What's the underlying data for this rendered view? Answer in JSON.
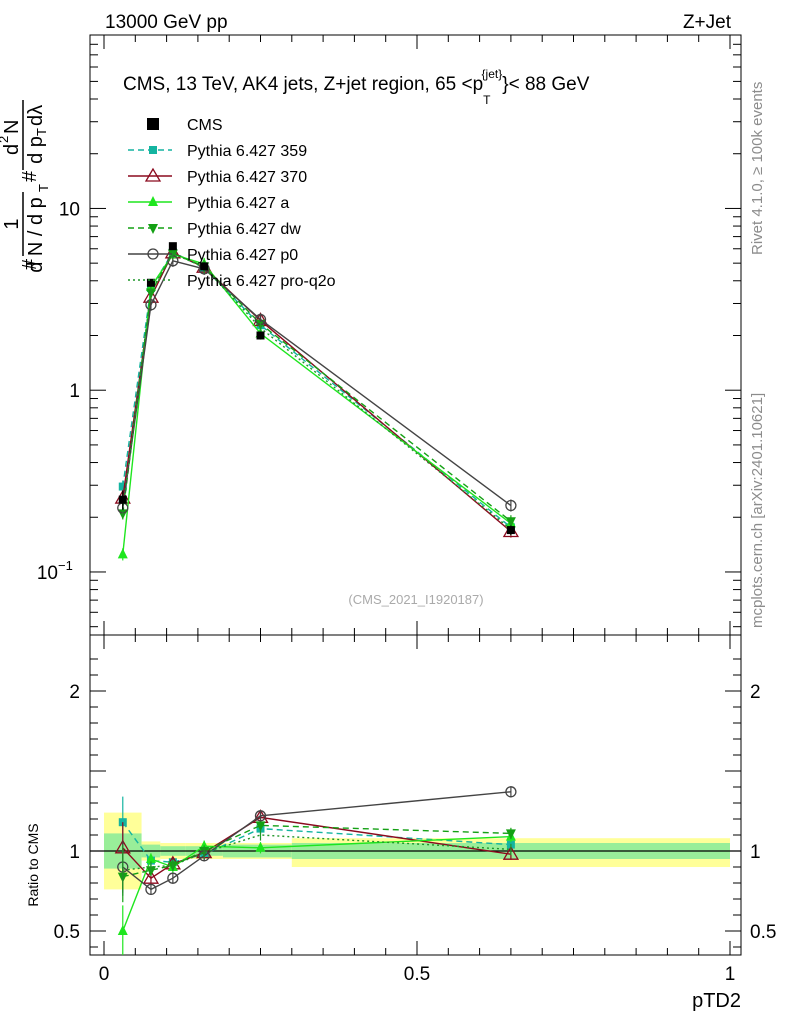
{
  "header": {
    "left": "13000 GeV pp",
    "right": "Z+Jet"
  },
  "side_text": {
    "rivet": "Rivet 4.1.0, ≥ 100k events",
    "mcplots": "mcplots.cern.ch [arXiv:2401.10621]"
  },
  "watermark": "(CMS_2021_I1920187)",
  "chart_data": {
    "type": "line",
    "title": "CMS, 13 TeV, AK4 jets, Z+jet region, 65 <p_T^{jet}< 88 GeV",
    "title_parts": {
      "main": "CMS, 13 TeV, AK4 jets, Z+jet region, 65 <p",
      "sup": "{jet}",
      "sub": "T",
      "end": "}< 88 GeV"
    },
    "xlabel": "pTD2",
    "ylabel": "1/(dN/dp_T) d²N/(dp_T dλ)",
    "ratio_ylabel": "Ratio to CMS",
    "xlim": [
      0,
      1
    ],
    "ylim": [
      0.045,
      90
    ],
    "yscale": "log",
    "ratio_ylim": [
      0.35,
      2.35
    ],
    "x": [
      0.03,
      0.075,
      0.11,
      0.16,
      0.25,
      0.65
    ],
    "data_name": "CMS",
    "data_values": [
      0.25,
      3.9,
      6.2,
      4.8,
      2.0,
      0.17
    ],
    "data_errors": [
      0.03,
      0.15,
      0.2,
      0.15,
      0.08,
      0.01
    ],
    "series": [
      {
        "name": "Pythia 6.427 359",
        "color": "#14b4a0",
        "dash": "6,4",
        "marker": "square",
        "values": [
          0.295,
          3.65,
          5.75,
          4.7,
          2.28,
          0.176
        ]
      },
      {
        "name": "Pythia 6.427 370",
        "color": "#8b0a1e",
        "dash": "",
        "marker": "triangle-open",
        "values": [
          0.255,
          3.25,
          5.7,
          4.75,
          2.42,
          0.167
        ]
      },
      {
        "name": "Pythia 6.427 a",
        "color": "#1ee61e",
        "dash": "",
        "marker": "triangle",
        "values": [
          0.125,
          3.7,
          5.6,
          4.95,
          2.05,
          0.185
        ]
      },
      {
        "name": "Pythia 6.427 dw",
        "color": "#14a014",
        "dash": "6,4",
        "marker": "triangle-down",
        "values": [
          0.21,
          3.45,
          5.65,
          4.8,
          2.32,
          0.19
        ]
      },
      {
        "name": "Pythia 6.427 p0",
        "color": "#444444",
        "dash": "",
        "marker": "circle-open",
        "values": [
          0.225,
          2.95,
          5.15,
          4.65,
          2.45,
          0.232
        ]
      },
      {
        "name": "Pythia 6.427 pro-q2o",
        "color": "#1e9628",
        "dash": "2,3",
        "marker": "none",
        "values": [
          0.22,
          3.5,
          5.65,
          4.75,
          2.2,
          0.172
        ]
      }
    ],
    "ratio_series": [
      {
        "name": "Pythia 6.427 359",
        "values": [
          1.18,
          0.94,
          0.93,
          0.98,
          1.14,
          1.04
        ]
      },
      {
        "name": "Pythia 6.427 370",
        "values": [
          1.02,
          0.83,
          0.92,
          0.99,
          1.21,
          0.98
        ]
      },
      {
        "name": "Pythia 6.427 a",
        "values": [
          0.5,
          0.95,
          0.9,
          1.03,
          1.02,
          1.09
        ]
      },
      {
        "name": "Pythia 6.427 dw",
        "values": [
          0.84,
          0.88,
          0.91,
          1.0,
          1.16,
          1.11
        ]
      },
      {
        "name": "Pythia 6.427 p0",
        "values": [
          0.9,
          0.76,
          0.83,
          0.97,
          1.22,
          1.37
        ]
      },
      {
        "name": "Pythia 6.427 pro-q2o",
        "values": [
          0.88,
          0.9,
          0.91,
          0.99,
          1.1,
          1.01
        ]
      }
    ],
    "bands": [
      {
        "x0": 0.0,
        "x1": 0.06,
        "stat": [
          0.89,
          1.11
        ],
        "total": [
          0.76,
          1.24
        ]
      },
      {
        "x0": 0.06,
        "x1": 0.09,
        "stat": [
          0.96,
          1.04
        ],
        "total": [
          0.94,
          1.06
        ]
      },
      {
        "x0": 0.09,
        "x1": 0.13,
        "stat": [
          0.97,
          1.03
        ],
        "total": [
          0.95,
          1.05
        ]
      },
      {
        "x0": 0.13,
        "x1": 0.19,
        "stat": [
          0.97,
          1.03
        ],
        "total": [
          0.95,
          1.05
        ]
      },
      {
        "x0": 0.19,
        "x1": 0.3,
        "stat": [
          0.96,
          1.04
        ],
        "total": [
          0.95,
          1.05
        ]
      },
      {
        "x0": 0.3,
        "x1": 1.0,
        "stat": [
          0.95,
          1.05
        ],
        "total": [
          0.9,
          1.08
        ]
      }
    ],
    "main_yticks": [
      {
        "value": 0.1,
        "label": "10",
        "sup": "−1"
      },
      {
        "value": 1,
        "label": "1",
        "sup": ""
      },
      {
        "value": 10,
        "label": "10",
        "sup": ""
      }
    ],
    "ratio_yticks": [
      {
        "value": 0.5,
        "label": "0.5"
      },
      {
        "value": 1,
        "label": "1"
      },
      {
        "value": 2,
        "label": "2"
      }
    ],
    "xticks": [
      {
        "value": 0,
        "label": "0"
      },
      {
        "value": 0.5,
        "label": "0.5"
      },
      {
        "value": 1,
        "label": "1"
      }
    ]
  }
}
